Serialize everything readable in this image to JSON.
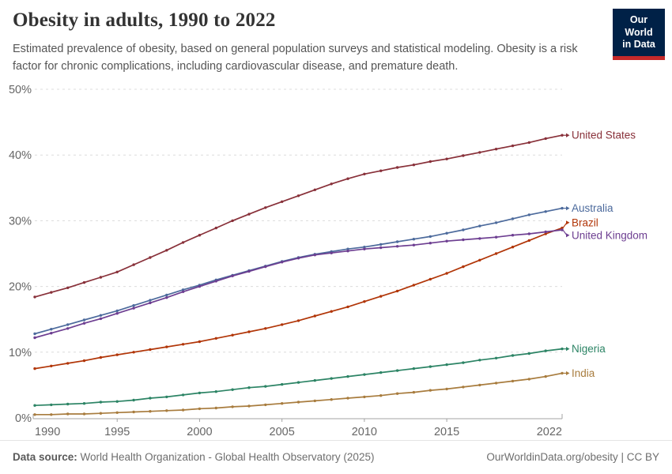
{
  "header": {
    "title": "Obesity in adults, 1990 to 2022",
    "subtitle": "Estimated prevalence of obesity, based on general population surveys and statistical modeling. Obesity is a risk factor for chronic complications, including cardiovascular disease, and premature death.",
    "logo": {
      "line1": "Our World",
      "line2": "in Data",
      "bg_color": "#002147",
      "stripe_color": "#C5292A"
    }
  },
  "chart_data": {
    "type": "line",
    "title": "Obesity in adults, 1990 to 2022",
    "xlabel": "",
    "ylabel": "",
    "ylim": [
      0,
      50
    ],
    "xlim": [
      1990,
      2022
    ],
    "y_ticks": [
      "0%",
      "10%",
      "20%",
      "30%",
      "40%",
      "50%"
    ],
    "x_ticks": [
      1990,
      1995,
      2000,
      2005,
      2010,
      2015,
      2022
    ],
    "grid": "horizontal-dashed",
    "legend_position": "right-end-labels",
    "x": [
      1990,
      1991,
      1992,
      1993,
      1994,
      1995,
      1996,
      1997,
      1998,
      1999,
      2000,
      2001,
      2002,
      2003,
      2004,
      2005,
      2006,
      2007,
      2008,
      2009,
      2010,
      2011,
      2012,
      2013,
      2014,
      2015,
      2016,
      2017,
      2018,
      2019,
      2020,
      2021,
      2022
    ],
    "series": [
      {
        "name": "United States",
        "color": "#883039",
        "values": [
          18.4,
          19.1,
          19.8,
          20.6,
          21.4,
          22.2,
          23.3,
          24.4,
          25.5,
          26.7,
          27.8,
          28.9,
          30.0,
          31.0,
          32.0,
          32.9,
          33.8,
          34.7,
          35.6,
          36.4,
          37.1,
          37.6,
          38.1,
          38.5,
          39.0,
          39.4,
          39.9,
          40.4,
          40.9,
          41.4,
          41.9,
          42.5,
          43.0
        ]
      },
      {
        "name": "Australia",
        "color": "#4C6A9C",
        "values": [
          12.8,
          13.5,
          14.2,
          14.9,
          15.6,
          16.3,
          17.1,
          17.9,
          18.7,
          19.5,
          20.2,
          21.0,
          21.7,
          22.4,
          23.1,
          23.8,
          24.4,
          24.9,
          25.3,
          25.7,
          26.0,
          26.4,
          26.8,
          27.2,
          27.6,
          28.1,
          28.6,
          29.2,
          29.7,
          30.3,
          30.9,
          31.4,
          31.9
        ]
      },
      {
        "name": "Brazil",
        "color": "#B13507",
        "values": [
          7.5,
          7.9,
          8.3,
          8.7,
          9.2,
          9.6,
          10.0,
          10.4,
          10.8,
          11.2,
          11.6,
          12.1,
          12.6,
          13.1,
          13.6,
          14.2,
          14.8,
          15.5,
          16.2,
          16.9,
          17.7,
          18.5,
          19.3,
          20.2,
          21.1,
          22.0,
          23.0,
          24.0,
          25.0,
          26.0,
          27.0,
          28.0,
          28.9
        ]
      },
      {
        "name": "United Kingdom",
        "color": "#6D3E91",
        "values": [
          12.2,
          12.9,
          13.6,
          14.4,
          15.1,
          15.9,
          16.7,
          17.5,
          18.3,
          19.2,
          20.0,
          20.8,
          21.6,
          22.3,
          23.0,
          23.7,
          24.3,
          24.8,
          25.1,
          25.4,
          25.7,
          25.9,
          26.1,
          26.3,
          26.6,
          26.9,
          27.1,
          27.3,
          27.5,
          27.8,
          28.0,
          28.3,
          28.6
        ]
      },
      {
        "name": "Nigeria",
        "color": "#2C8465",
        "values": [
          1.9,
          2.0,
          2.1,
          2.2,
          2.4,
          2.5,
          2.7,
          3.0,
          3.2,
          3.5,
          3.8,
          4.0,
          4.3,
          4.6,
          4.8,
          5.1,
          5.4,
          5.7,
          6.0,
          6.3,
          6.6,
          6.9,
          7.2,
          7.5,
          7.8,
          8.1,
          8.4,
          8.8,
          9.1,
          9.5,
          9.8,
          10.2,
          10.5
        ]
      },
      {
        "name": "India",
        "color": "#A87C3E",
        "values": [
          0.5,
          0.5,
          0.6,
          0.6,
          0.7,
          0.8,
          0.9,
          1.0,
          1.1,
          1.2,
          1.4,
          1.5,
          1.7,
          1.8,
          2.0,
          2.2,
          2.4,
          2.6,
          2.8,
          3.0,
          3.2,
          3.4,
          3.7,
          3.9,
          4.2,
          4.4,
          4.7,
          5.0,
          5.3,
          5.6,
          5.9,
          6.3,
          6.8
        ]
      }
    ]
  },
  "footer": {
    "source_label": "Data source:",
    "source_text": " World Health Organization - Global Health Observatory (2025)",
    "credit": "OurWorldinData.org/obesity | CC BY"
  }
}
